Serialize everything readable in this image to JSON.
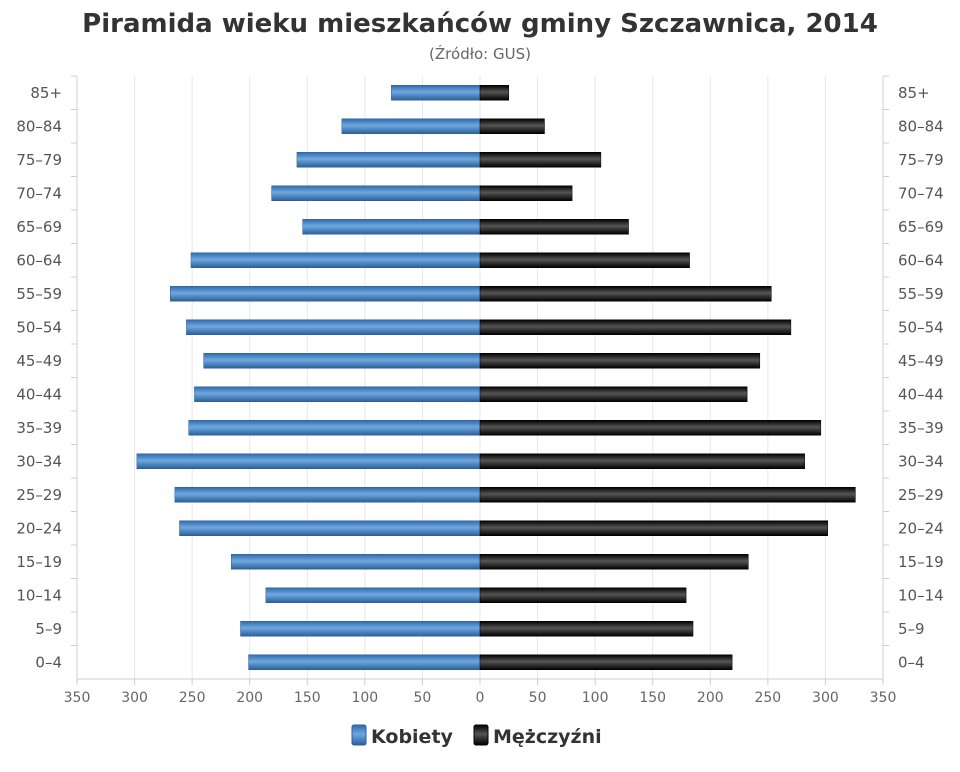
{
  "chart_data": {
    "type": "bar",
    "title": "Piramida wieku mieszkańców gminy Szczawnica, 2014",
    "subtitle": "(Źródło: GUS)",
    "categories": [
      "85+",
      "80–84",
      "75–79",
      "70–74",
      "65–69",
      "60–64",
      "55–59",
      "50–54",
      "45–49",
      "40–44",
      "35–39",
      "30–34",
      "25–29",
      "20–24",
      "15–19",
      "10–14",
      "5–9",
      "0–4"
    ],
    "series": [
      {
        "name": "Kobiety",
        "values": [
          77,
          120,
          159,
          181,
          154,
          251,
          269,
          255,
          240,
          248,
          253,
          298,
          265,
          261,
          216,
          186,
          208,
          201
        ],
        "color": "#4a86c5"
      },
      {
        "name": "Mężczyźni",
        "values": [
          25,
          56,
          105,
          80,
          129,
          182,
          253,
          270,
          243,
          232,
          296,
          282,
          326,
          302,
          233,
          179,
          185,
          219
        ],
        "color": "#1a1a1a"
      }
    ],
    "xlim": [
      -350,
      350
    ],
    "x_ticks": [
      "350",
      "300",
      "250",
      "200",
      "150",
      "100",
      "50",
      "0",
      "50",
      "100",
      "150",
      "200",
      "250",
      "300",
      "350"
    ],
    "grid": true,
    "legend_position": "bottom-center"
  }
}
